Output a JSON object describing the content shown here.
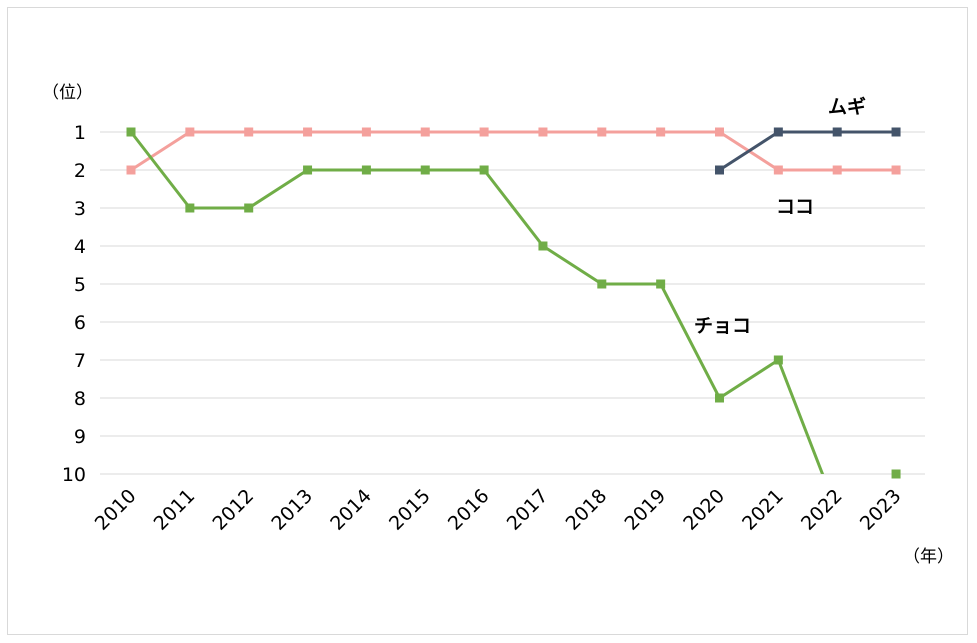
{
  "chart_data": {
    "type": "line",
    "y_unit": "（位）",
    "x_unit": "（年）",
    "y_reversed": true,
    "ylim": [
      1,
      10
    ],
    "y_ticks": [
      "1",
      "2",
      "3",
      "4",
      "5",
      "6",
      "7",
      "8",
      "9",
      "10"
    ],
    "x": [
      "2010",
      "2011",
      "2012",
      "2013",
      "2014",
      "2015",
      "2016",
      "2017",
      "2018",
      "2019",
      "2020",
      "2021",
      "2022",
      "2023"
    ],
    "grid": true,
    "legend": "none",
    "series": [
      {
        "name": "ココ",
        "color": "#f4a09c",
        "values": [
          2,
          1,
          1,
          1,
          1,
          1,
          1,
          1,
          1,
          1,
          1,
          2,
          2,
          2
        ]
      },
      {
        "name": "チョコ",
        "color": "#70ad47",
        "values": [
          1,
          3,
          3,
          2,
          2,
          2,
          2,
          4,
          5,
          5,
          8,
          7,
          11,
          10
        ]
      },
      {
        "name": "ムギ",
        "color": "#44546a",
        "values": [
          null,
          null,
          null,
          null,
          null,
          null,
          null,
          null,
          null,
          null,
          2,
          1,
          1,
          1
        ]
      }
    ]
  }
}
